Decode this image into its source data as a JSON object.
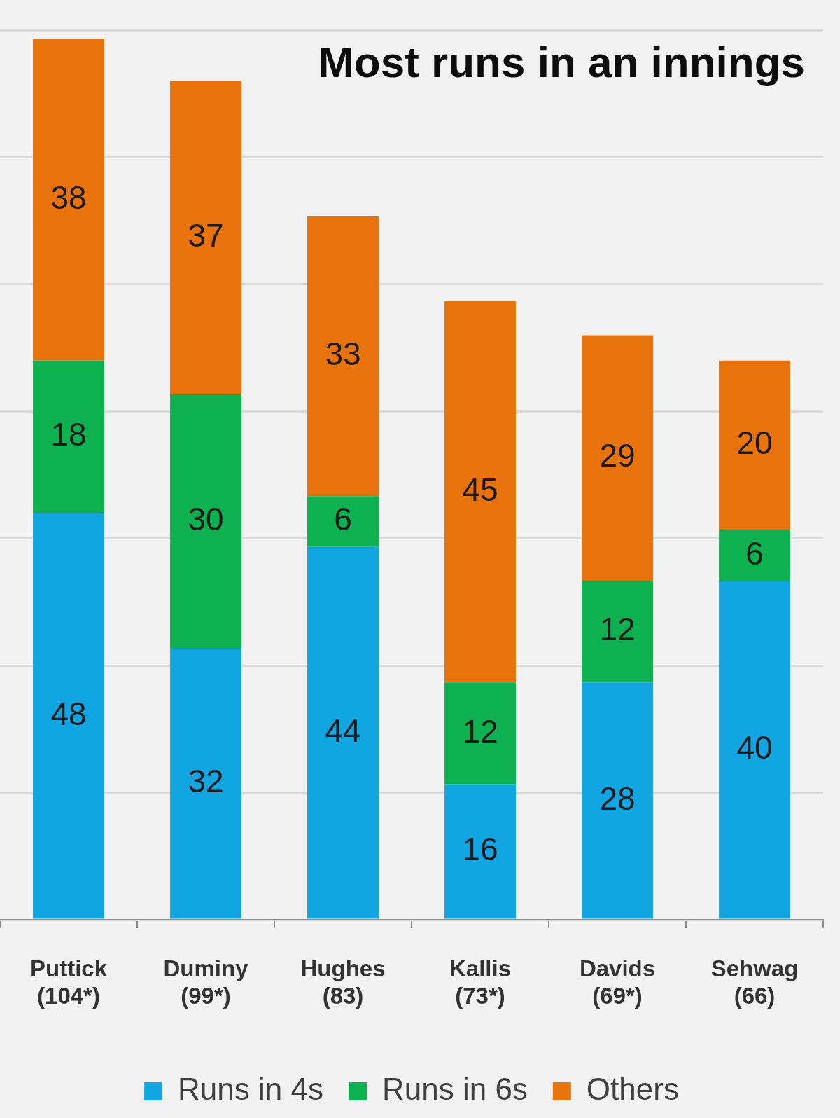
{
  "chart_data": {
    "type": "bar",
    "title": "Most runs in an innings",
    "categories": [
      "Puttick (104*)",
      "Duminy (99*)",
      "Hughes (83)",
      "Kallis (73*)",
      "Davids (69*)",
      "Sehwag (66)"
    ],
    "series": [
      {
        "name": "Runs in 4s",
        "color": "#11a6e2",
        "values": [
          48,
          32,
          44,
          16,
          28,
          40
        ]
      },
      {
        "name": "Runs in 6s",
        "color": "#0db14f",
        "values": [
          18,
          30,
          6,
          12,
          12,
          6
        ]
      },
      {
        "name": "Others",
        "color": "#e8720c",
        "values": [
          38,
          37,
          33,
          45,
          29,
          20
        ]
      }
    ],
    "stacked": true,
    "ylim": [
      0,
      105
    ],
    "yticks": [
      {
        "value": 0,
        "label": null
      },
      {
        "value": 15,
        "label": null
      },
      {
        "value": 30,
        "label": null
      },
      {
        "value": 45,
        "label": null
      },
      {
        "value": 60,
        "label": null
      },
      {
        "value": 75,
        "label": null
      },
      {
        "value": 90,
        "label": null
      },
      {
        "value": 105,
        "label": null
      }
    ],
    "grid": "y",
    "tick_labels": "x",
    "legend": "bottom",
    "data_labels": true
  }
}
